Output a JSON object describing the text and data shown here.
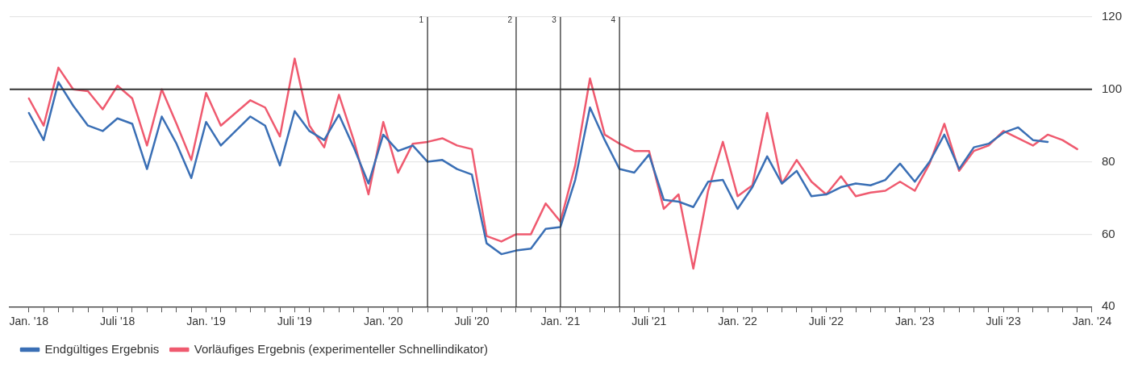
{
  "chart_data": {
    "type": "line",
    "x": [
      "2018-01",
      "2018-02",
      "2018-03",
      "2018-04",
      "2018-05",
      "2018-06",
      "2018-07",
      "2018-08",
      "2018-09",
      "2018-10",
      "2018-11",
      "2018-12",
      "2019-01",
      "2019-02",
      "2019-03",
      "2019-04",
      "2019-05",
      "2019-06",
      "2019-07",
      "2019-08",
      "2019-09",
      "2019-10",
      "2019-11",
      "2019-12",
      "2020-01",
      "2020-02",
      "2020-03",
      "2020-04",
      "2020-05",
      "2020-06",
      "2020-07",
      "2020-08",
      "2020-09",
      "2020-10",
      "2020-11",
      "2020-12",
      "2021-01",
      "2021-02",
      "2021-03",
      "2021-04",
      "2021-05",
      "2021-06",
      "2021-07",
      "2021-08",
      "2021-09",
      "2021-10",
      "2021-11",
      "2021-12",
      "2022-01",
      "2022-02",
      "2022-03",
      "2022-04",
      "2022-05",
      "2022-06",
      "2022-07",
      "2022-08",
      "2022-09",
      "2022-10",
      "2022-11",
      "2022-12",
      "2023-01",
      "2023-02",
      "2023-03",
      "2023-04",
      "2023-05",
      "2023-06",
      "2023-07",
      "2023-08",
      "2023-09",
      "2023-10",
      "2023-11",
      "2023-12"
    ],
    "series": [
      {
        "name": "Endgültiges Ergebnis",
        "color": "#3a6fb5",
        "values": [
          93.5,
          86,
          102,
          95.5,
          90,
          88.5,
          92,
          90.5,
          78,
          92.5,
          85,
          75.5,
          91,
          84.5,
          88.5,
          92.5,
          90,
          79,
          94,
          88.5,
          86,
          93,
          84,
          74,
          87.5,
          83,
          84.5,
          80,
          80.5,
          78,
          76.5,
          57.5,
          54.5,
          55.5,
          56,
          61.5,
          62,
          75,
          95,
          86,
          78,
          77,
          82,
          69.5,
          69,
          67.5,
          74.5,
          75,
          67,
          73,
          81.5,
          74,
          77.5,
          70.5,
          71,
          73,
          74,
          73.5,
          75,
          79.5,
          74.5,
          80,
          87.5,
          78,
          84,
          85,
          88,
          89.5,
          86,
          85.5,
          null,
          null
        ]
      },
      {
        "name": "Vorläufiges Ergebnis (experimenteller Schnellindikator)",
        "color": "#ef5a6f",
        "values": [
          97.5,
          90,
          106,
          100,
          99.5,
          94.5,
          101,
          97.5,
          84.5,
          100,
          90.5,
          80.5,
          99,
          90,
          93.5,
          97,
          95,
          87,
          108.5,
          90,
          84,
          98.5,
          86,
          71,
          91,
          77,
          85,
          85.5,
          86.5,
          84.5,
          83.5,
          59.5,
          58,
          60,
          60,
          68.5,
          63.5,
          79,
          103,
          87.5,
          85,
          83,
          83,
          67,
          71,
          50.5,
          72,
          85.5,
          70.5,
          73.5,
          93.5,
          74,
          80.5,
          74.5,
          71,
          76,
          70.5,
          71.5,
          72,
          74.5,
          72,
          79.5,
          90.5,
          77.5,
          83,
          84.5,
          88.5,
          86.5,
          84.5,
          87.5,
          86,
          83.5
        ]
      }
    ],
    "xlim": [
      "2017-11-22",
      "2024-01"
    ],
    "xticks": [
      {
        "value": "2018-01",
        "label": "Jan. '18"
      },
      {
        "value": "2018-02",
        "label": null
      },
      {
        "value": "2018-03",
        "label": null
      },
      {
        "value": "2018-04",
        "label": null
      },
      {
        "value": "2018-05",
        "label": null
      },
      {
        "value": "2018-06",
        "label": null
      },
      {
        "value": "2018-07",
        "label": "Juli '18"
      },
      {
        "value": "2018-08",
        "label": null
      },
      {
        "value": "2018-09",
        "label": null
      },
      {
        "value": "2018-10",
        "label": null
      },
      {
        "value": "2018-11",
        "label": null
      },
      {
        "value": "2018-12",
        "label": null
      },
      {
        "value": "2019-01",
        "label": "Jan. '19"
      },
      {
        "value": "2019-02",
        "label": null
      },
      {
        "value": "2019-03",
        "label": null
      },
      {
        "value": "2019-04",
        "label": null
      },
      {
        "value": "2019-05",
        "label": null
      },
      {
        "value": "2019-06",
        "label": null
      },
      {
        "value": "2019-07",
        "label": "Juli '19"
      },
      {
        "value": "2019-08",
        "label": null
      },
      {
        "value": "2019-09",
        "label": null
      },
      {
        "value": "2019-10",
        "label": null
      },
      {
        "value": "2019-11",
        "label": null
      },
      {
        "value": "2019-12",
        "label": null
      },
      {
        "value": "2020-01",
        "label": "Jan. '20"
      },
      {
        "value": "2020-02",
        "label": null
      },
      {
        "value": "2020-03",
        "label": null
      },
      {
        "value": "2020-04",
        "label": null
      },
      {
        "value": "2020-05",
        "label": null
      },
      {
        "value": "2020-06",
        "label": null
      },
      {
        "value": "2020-07",
        "label": "Juli '20"
      },
      {
        "value": "2020-08",
        "label": null
      },
      {
        "value": "2020-09",
        "label": null
      },
      {
        "value": "2020-10",
        "label": null
      },
      {
        "value": "2020-11",
        "label": null
      },
      {
        "value": "2020-12",
        "label": null
      },
      {
        "value": "2021-01",
        "label": "Jan. '21"
      },
      {
        "value": "2021-02",
        "label": null
      },
      {
        "value": "2021-03",
        "label": null
      },
      {
        "value": "2021-04",
        "label": null
      },
      {
        "value": "2021-05",
        "label": null
      },
      {
        "value": "2021-06",
        "label": null
      },
      {
        "value": "2021-07",
        "label": "Juli '21"
      },
      {
        "value": "2021-08",
        "label": null
      },
      {
        "value": "2021-09",
        "label": null
      },
      {
        "value": "2021-10",
        "label": null
      },
      {
        "value": "2021-11",
        "label": null
      },
      {
        "value": "2021-12",
        "label": null
      },
      {
        "value": "2022-01",
        "label": "Jan. '22"
      },
      {
        "value": "2022-02",
        "label": null
      },
      {
        "value": "2022-03",
        "label": null
      },
      {
        "value": "2022-04",
        "label": null
      },
      {
        "value": "2022-05",
        "label": null
      },
      {
        "value": "2022-06",
        "label": null
      },
      {
        "value": "2022-07",
        "label": "Juli '22"
      },
      {
        "value": "2022-08",
        "label": null
      },
      {
        "value": "2022-09",
        "label": null
      },
      {
        "value": "2022-10",
        "label": null
      },
      {
        "value": "2022-11",
        "label": null
      },
      {
        "value": "2022-12",
        "label": null
      },
      {
        "value": "2023-01",
        "label": "Jan. '23"
      },
      {
        "value": "2023-02",
        "label": null
      },
      {
        "value": "2023-03",
        "label": null
      },
      {
        "value": "2023-04",
        "label": null
      },
      {
        "value": "2023-05",
        "label": null
      },
      {
        "value": "2023-06",
        "label": null
      },
      {
        "value": "2023-07",
        "label": "Juli '23"
      },
      {
        "value": "2023-08",
        "label": null
      },
      {
        "value": "2023-09",
        "label": null
      },
      {
        "value": "2023-10",
        "label": null
      },
      {
        "value": "2023-11",
        "label": null
      },
      {
        "value": "2023-12",
        "label": null
      },
      {
        "value": "2024-01",
        "label": "Jan. '24"
      }
    ],
    "ylim": [
      40,
      120
    ],
    "yticks": [
      40,
      60,
      80,
      100,
      120
    ],
    "grid": "y",
    "legend": "bottom left",
    "marker": "none",
    "line_style": "solid",
    "ref_lines": [
      {
        "axis": "y",
        "value": 100,
        "color": "#333333"
      },
      {
        "axis": "x",
        "value": "2020-04",
        "label": "1",
        "color": "#333333"
      },
      {
        "axis": "x",
        "value": "2020-10",
        "label": "2",
        "color": "#333333"
      },
      {
        "axis": "x",
        "value": "2021-01",
        "label": "3",
        "color": "#333333"
      },
      {
        "axis": "x",
        "value": "2021-05",
        "label": "4",
        "color": "#333333"
      }
    ]
  }
}
